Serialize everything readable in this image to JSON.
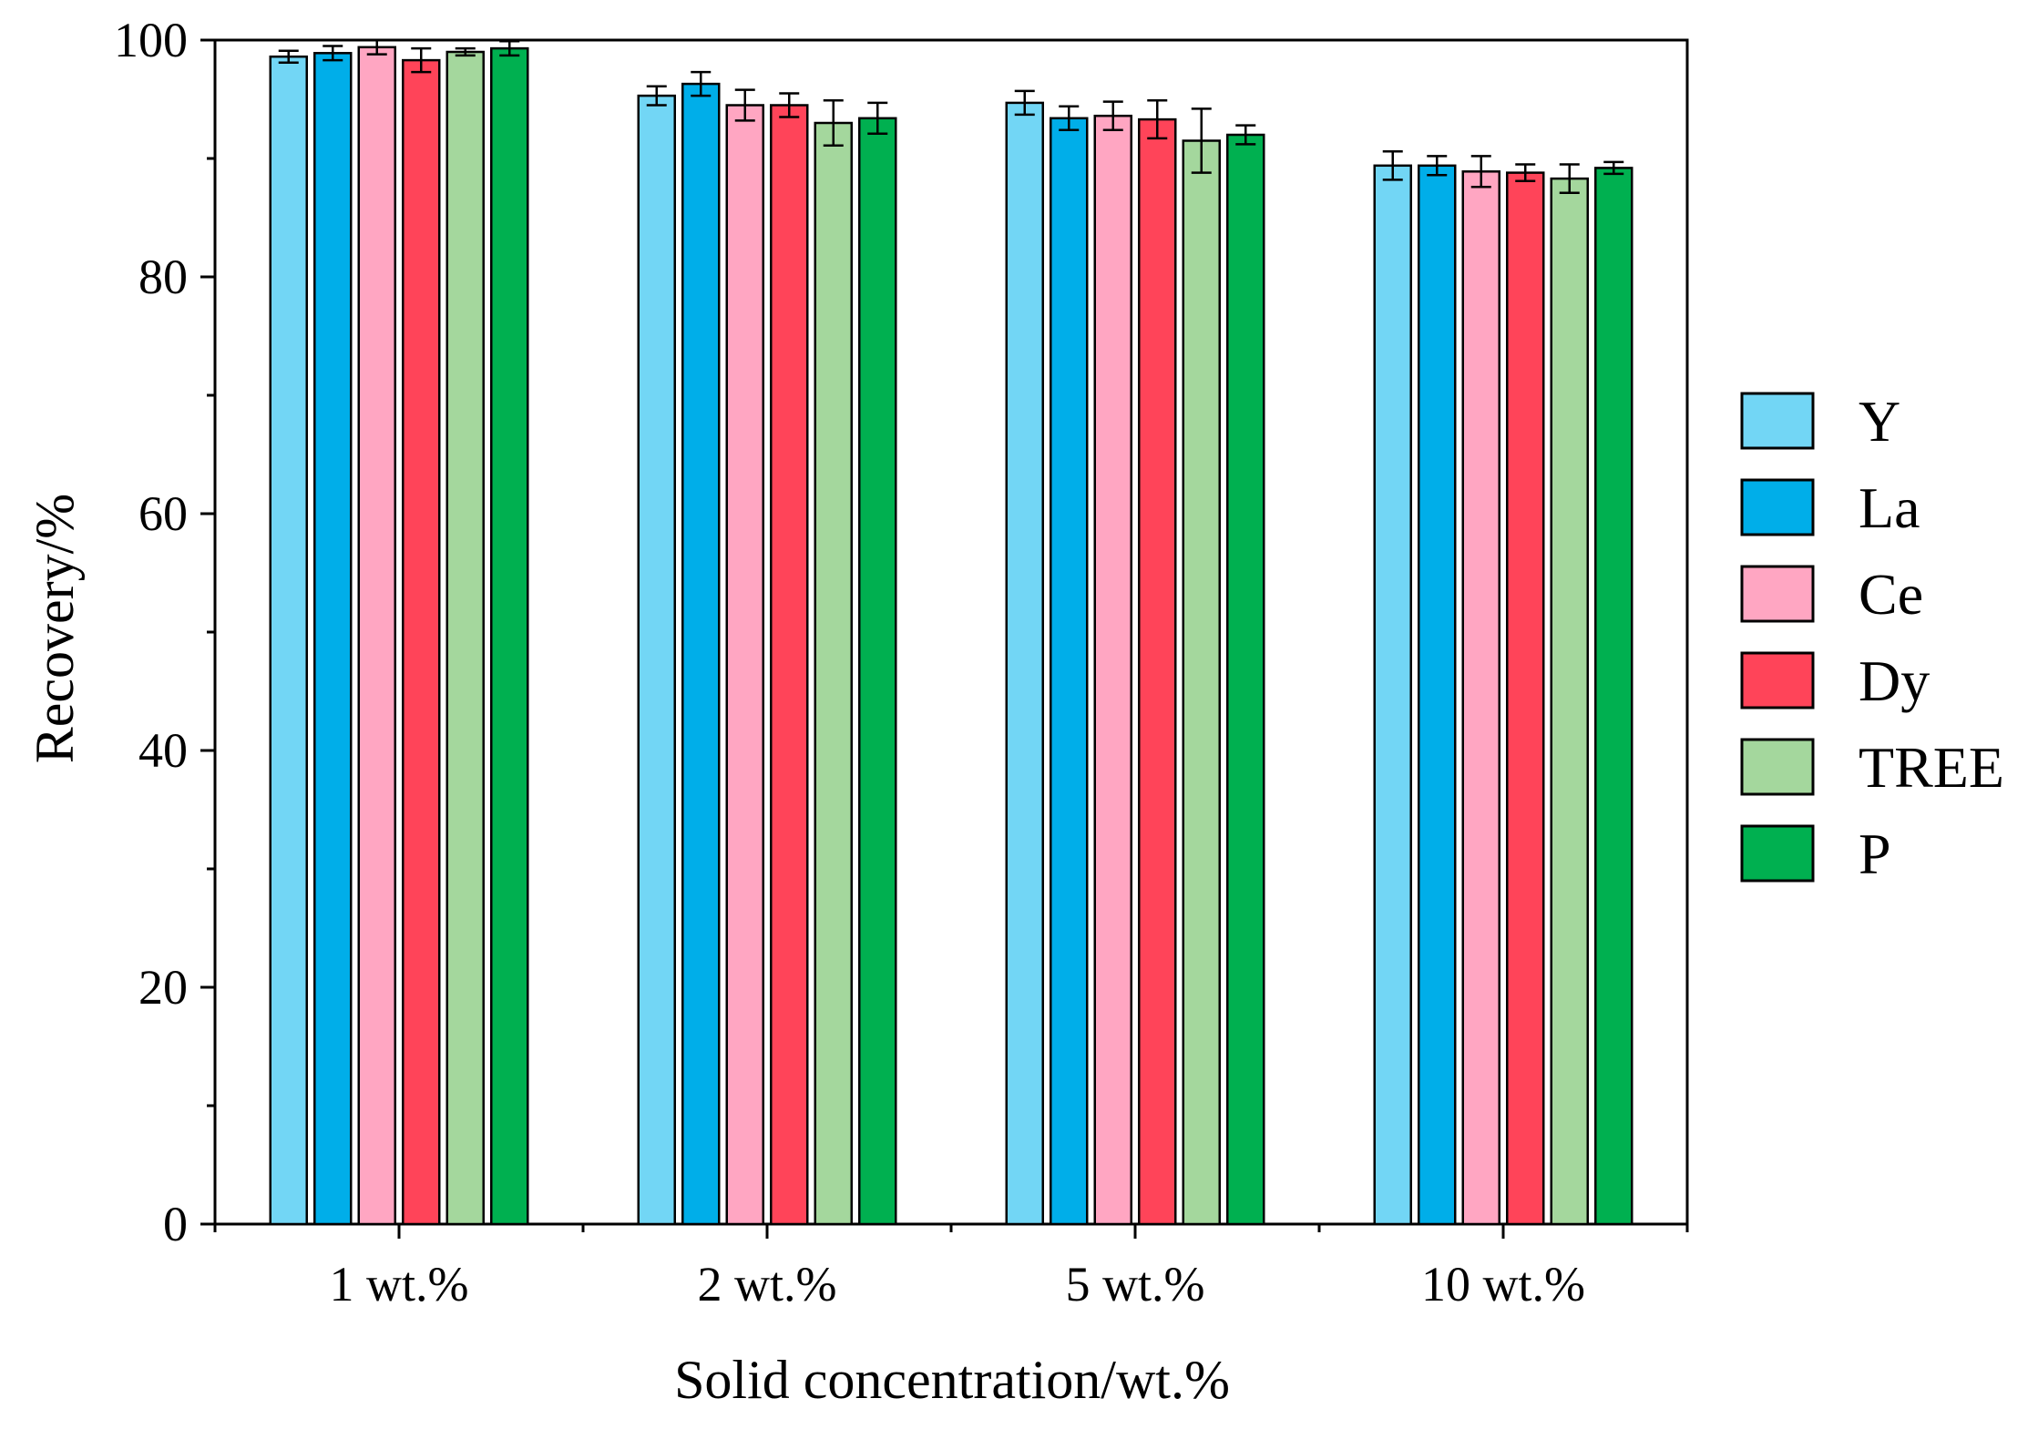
{
  "chart_data": {
    "type": "bar",
    "title": "",
    "xlabel": "Solid concentration/wt.%",
    "ylabel": "Recovery/%",
    "ylim": [
      0,
      100
    ],
    "yticks": [
      "0",
      "20",
      "40",
      "60",
      "80",
      "100"
    ],
    "categories": [
      "1 wt.%",
      "2 wt.%",
      "5 wt.%",
      "10 wt.%"
    ],
    "legend_position": "right",
    "grid": false,
    "series": [
      {
        "name": "Y",
        "color": "#72d6f5",
        "values": [
          98.6,
          95.3,
          94.7,
          89.4
        ],
        "errors": [
          0.5,
          0.8,
          1.0,
          1.2
        ]
      },
      {
        "name": "La",
        "color": "#00aee9",
        "values": [
          98.9,
          96.3,
          93.4,
          89.4
        ],
        "errors": [
          0.6,
          1.0,
          1.0,
          0.8
        ]
      },
      {
        "name": "Ce",
        "color": "#ffa6c2",
        "values": [
          99.4,
          94.5,
          93.6,
          88.9
        ],
        "errors": [
          0.6,
          1.3,
          1.2,
          1.3
        ]
      },
      {
        "name": "Dy",
        "color": "#ff4459",
        "values": [
          98.3,
          94.5,
          93.3,
          88.8
        ],
        "errors": [
          1.0,
          1.0,
          1.6,
          0.7
        ]
      },
      {
        "name": "TREE",
        "color": "#a4d79d",
        "values": [
          99.0,
          93.0,
          91.5,
          88.3
        ],
        "errors": [
          0.3,
          1.9,
          2.7,
          1.2
        ]
      },
      {
        "name": "P",
        "color": "#00b050",
        "values": [
          99.3,
          93.4,
          92.0,
          89.2
        ],
        "errors": [
          0.6,
          1.3,
          0.8,
          0.5
        ]
      }
    ]
  }
}
